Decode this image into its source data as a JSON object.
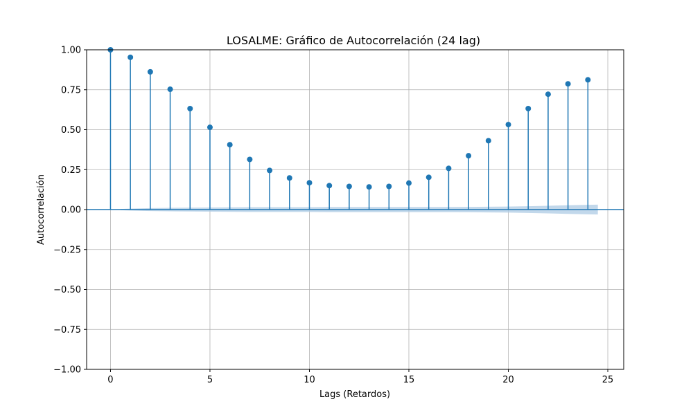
{
  "chart_data": {
    "type": "stem",
    "title": "LOSALME: Gráfico de Autocorrelación (24 lag)",
    "xlabel": "Lags (Retardos)",
    "ylabel": "Autocorrelación",
    "xlim": [
      -1.2,
      25.8
    ],
    "ylim": [
      -1.0,
      1.0
    ],
    "xticks": [
      0,
      5,
      10,
      15,
      20,
      25
    ],
    "xtick_labels": [
      "0",
      "5",
      "10",
      "15",
      "20",
      "25"
    ],
    "yticks": [
      -1.0,
      -0.75,
      -0.5,
      -0.25,
      0.0,
      0.25,
      0.5,
      0.75,
      1.0
    ],
    "ytick_labels": [
      "−1.00",
      "−0.75",
      "−0.50",
      "−0.25",
      "0.00",
      "0.25",
      "0.50",
      "0.75",
      "1.00"
    ],
    "grid": true,
    "series": [
      {
        "x": [
          0,
          1,
          2,
          3,
          4,
          5,
          6,
          7,
          8,
          9,
          10,
          11,
          12,
          13,
          14,
          15,
          16,
          17,
          18,
          19,
          20,
          21,
          22,
          23,
          24
        ],
        "values": [
          1.0,
          0.953,
          0.862,
          0.753,
          0.632,
          0.515,
          0.406,
          0.314,
          0.245,
          0.198,
          0.168,
          0.15,
          0.145,
          0.142,
          0.145,
          0.166,
          0.202,
          0.258,
          0.337,
          0.431,
          0.532,
          0.632,
          0.722,
          0.787,
          0.812
        ]
      }
    ],
    "confidence_band": {
      "x": [
        0.5,
        1,
        2,
        3,
        4,
        5,
        6,
        7,
        8,
        9,
        10,
        11,
        12,
        13,
        14,
        15,
        16,
        17,
        18,
        19,
        20,
        21,
        22,
        23,
        24,
        24.5
      ],
      "upper": [
        0.004,
        0.006,
        0.009,
        0.011,
        0.012,
        0.013,
        0.014,
        0.015,
        0.015,
        0.015,
        0.015,
        0.016,
        0.016,
        0.016,
        0.016,
        0.016,
        0.016,
        0.016,
        0.017,
        0.018,
        0.019,
        0.021,
        0.024,
        0.027,
        0.03,
        0.031
      ]
    },
    "colors": {
      "series": "#1f77b4",
      "band": "#aecbe4",
      "grid": "#b0b0b0",
      "axis": "#000000"
    }
  }
}
